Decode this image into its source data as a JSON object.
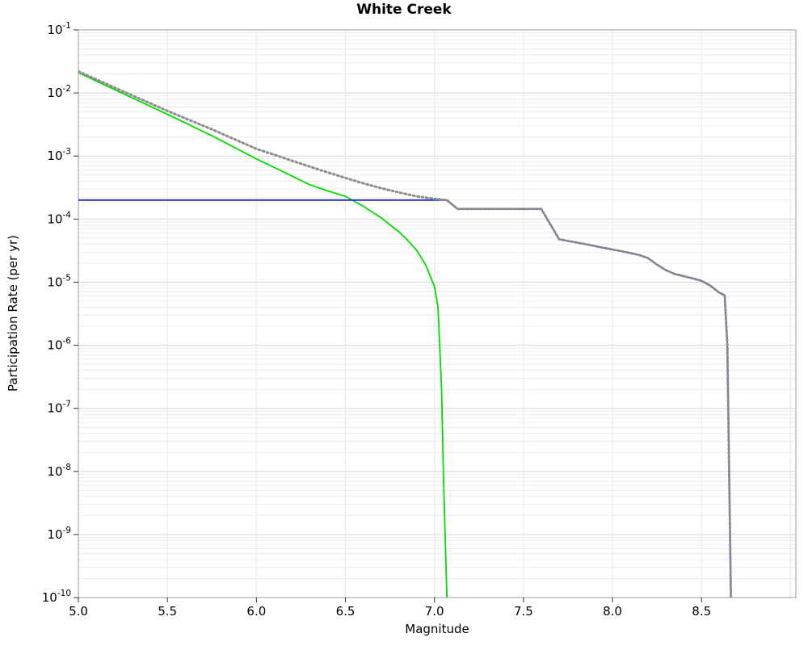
{
  "chart_data": {
    "type": "line",
    "title": "White Creek",
    "xlabel": "Magnitude",
    "ylabel": "Participation Rate (per yr)",
    "xlim": [
      5.0,
      9.03
    ],
    "yscale": "log",
    "ylim_exp": [
      -10,
      -1
    ],
    "xticks": [
      {
        "v": 5.0,
        "label": "5.0"
      },
      {
        "v": 5.5,
        "label": "5.5"
      },
      {
        "v": 6.0,
        "label": "6.0"
      },
      {
        "v": 6.5,
        "label": "6.5"
      },
      {
        "v": 7.0,
        "label": "7.0"
      },
      {
        "v": 7.5,
        "label": "7.5"
      },
      {
        "v": 8.0,
        "label": "8.0"
      },
      {
        "v": 8.5,
        "label": "8.5"
      }
    ],
    "ytick_base": "10",
    "ytick_exponents": [
      -1,
      -2,
      -3,
      -4,
      -5,
      -6,
      -7,
      -8,
      -9,
      -10
    ],
    "grid": {
      "major": "#d6d6d6",
      "minor": "#ececec",
      "vertical": "#e9e9e9",
      "border": "#9b9b9b",
      "tick": "#333333"
    },
    "series": [
      {
        "name": "green-solid-line",
        "color": "#00dd00",
        "style": "solid",
        "width": 1.8,
        "points": [
          [
            5.0,
            0.021
          ],
          [
            5.25,
            0.0098
          ],
          [
            5.5,
            0.0046
          ],
          [
            5.75,
            0.0021
          ],
          [
            6.0,
            0.0009
          ],
          [
            6.1,
            0.00066
          ],
          [
            6.2,
            0.00048
          ],
          [
            6.3,
            0.00035
          ],
          [
            6.4,
            0.00028
          ],
          [
            6.5,
            0.00023
          ],
          [
            6.6,
            0.00016
          ],
          [
            6.7,
            0.000105
          ],
          [
            6.8,
            6.3e-05
          ],
          [
            6.85,
            4.6e-05
          ],
          [
            6.9,
            3.2e-05
          ],
          [
            6.95,
            1.9e-05
          ],
          [
            7.0,
            8.5e-06
          ],
          [
            7.02,
            4e-06
          ],
          [
            7.04,
            2e-07
          ],
          [
            7.05,
            1e-08
          ],
          [
            7.07,
            1e-10
          ]
        ]
      },
      {
        "name": "blue-solid-line",
        "color": "#2323d6",
        "style": "solid",
        "width": 1.8,
        "points": [
          [
            5.0,
            0.0002
          ],
          [
            7.07,
            0.0002
          ],
          [
            7.13,
            0.000145
          ],
          [
            7.6,
            0.000145
          ],
          [
            7.7,
            4.8e-05
          ],
          [
            7.75,
            4.5e-05
          ],
          [
            7.85,
            4e-05
          ],
          [
            7.95,
            3.5e-05
          ],
          [
            8.05,
            3.1e-05
          ],
          [
            8.15,
            2.7e-05
          ],
          [
            8.2,
            2.4e-05
          ],
          [
            8.25,
            1.9e-05
          ],
          [
            8.3,
            1.55e-05
          ],
          [
            8.35,
            1.35e-05
          ],
          [
            8.45,
            1.15e-05
          ],
          [
            8.5,
            1.05e-05
          ],
          [
            8.55,
            8.8e-06
          ],
          [
            8.6,
            6.8e-06
          ],
          [
            8.63,
            6.2e-06
          ],
          [
            8.645,
            1e-06
          ],
          [
            8.655,
            1e-08
          ],
          [
            8.665,
            1e-10
          ]
        ]
      },
      {
        "name": "gray-dotted-line",
        "color": "#8d8d8d",
        "style": "dotted",
        "width": 3,
        "points": [
          [
            5.0,
            0.022
          ],
          [
            5.25,
            0.0106
          ],
          [
            5.5,
            0.0052
          ],
          [
            5.75,
            0.00265
          ],
          [
            6.0,
            0.0013
          ],
          [
            6.1,
            0.00105
          ],
          [
            6.2,
            0.00084
          ],
          [
            6.3,
            0.00068
          ],
          [
            6.4,
            0.00055
          ],
          [
            6.5,
            0.00045
          ],
          [
            6.6,
            0.00037
          ],
          [
            6.7,
            0.00031
          ],
          [
            6.8,
            0.000265
          ],
          [
            6.9,
            0.00023
          ],
          [
            7.0,
            0.00021
          ],
          [
            7.07,
            0.0002
          ],
          [
            7.13,
            0.000145
          ],
          [
            7.6,
            0.000145
          ],
          [
            7.7,
            4.8e-05
          ],
          [
            7.75,
            4.5e-05
          ],
          [
            7.85,
            4e-05
          ],
          [
            7.95,
            3.5e-05
          ],
          [
            8.05,
            3.1e-05
          ],
          [
            8.15,
            2.7e-05
          ],
          [
            8.2,
            2.4e-05
          ],
          [
            8.25,
            1.9e-05
          ],
          [
            8.3,
            1.55e-05
          ],
          [
            8.35,
            1.35e-05
          ],
          [
            8.45,
            1.15e-05
          ],
          [
            8.5,
            1.05e-05
          ],
          [
            8.55,
            8.8e-06
          ],
          [
            8.6,
            6.8e-06
          ],
          [
            8.63,
            6.2e-06
          ],
          [
            8.645,
            1e-06
          ],
          [
            8.655,
            1e-08
          ],
          [
            8.665,
            1e-10
          ]
        ]
      }
    ]
  }
}
